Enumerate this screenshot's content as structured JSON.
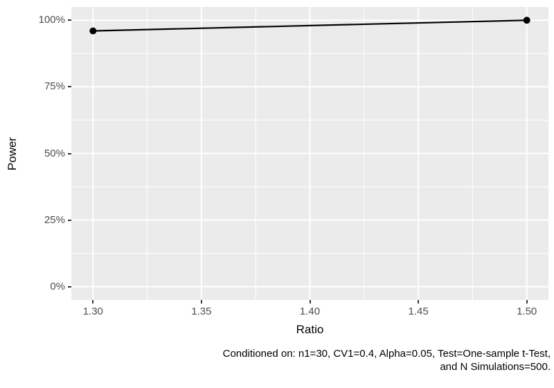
{
  "chart_data": {
    "type": "line",
    "title": "",
    "xlabel": "Ratio",
    "ylabel": "Power",
    "x": [
      1.3,
      1.5
    ],
    "series": [
      {
        "name": "Power",
        "values": [
          96,
          100
        ]
      }
    ],
    "xlim": [
      1.29,
      1.51
    ],
    "ylim": [
      -5,
      105
    ],
    "x_ticks": [
      {
        "value": 1.3,
        "label": "1.30"
      },
      {
        "value": 1.35,
        "label": "1.35"
      },
      {
        "value": 1.4,
        "label": "1.40"
      },
      {
        "value": 1.45,
        "label": "1.45"
      },
      {
        "value": 1.5,
        "label": "1.50"
      }
    ],
    "y_ticks": [
      {
        "value": 0,
        "label": "0%"
      },
      {
        "value": 25,
        "label": "25%"
      },
      {
        "value": 50,
        "label": "50%"
      },
      {
        "value": 75,
        "label": "75%"
      },
      {
        "value": 100,
        "label": "100%"
      }
    ],
    "x_minor": [
      1.325,
      1.375,
      1.425,
      1.475
    ],
    "y_minor": [
      12.5,
      37.5,
      62.5,
      87.5
    ],
    "grid": true,
    "legend": "none",
    "caption": {
      "line1": "Conditioned on: n1=30, CV1=0.4, Alpha=0.05, Test=One-sample t-Test,",
      "line2": "and N Simulations=500."
    },
    "colors": {
      "panel_background": "#ebebeb",
      "grid_major": "#ffffff",
      "grid_minor": "#ffffff",
      "line": "#000000",
      "point": "#000000",
      "tick_label": "#4d4d4d",
      "tick_mark": "#333333",
      "axis_title": "#000000",
      "caption": "#000000"
    }
  }
}
